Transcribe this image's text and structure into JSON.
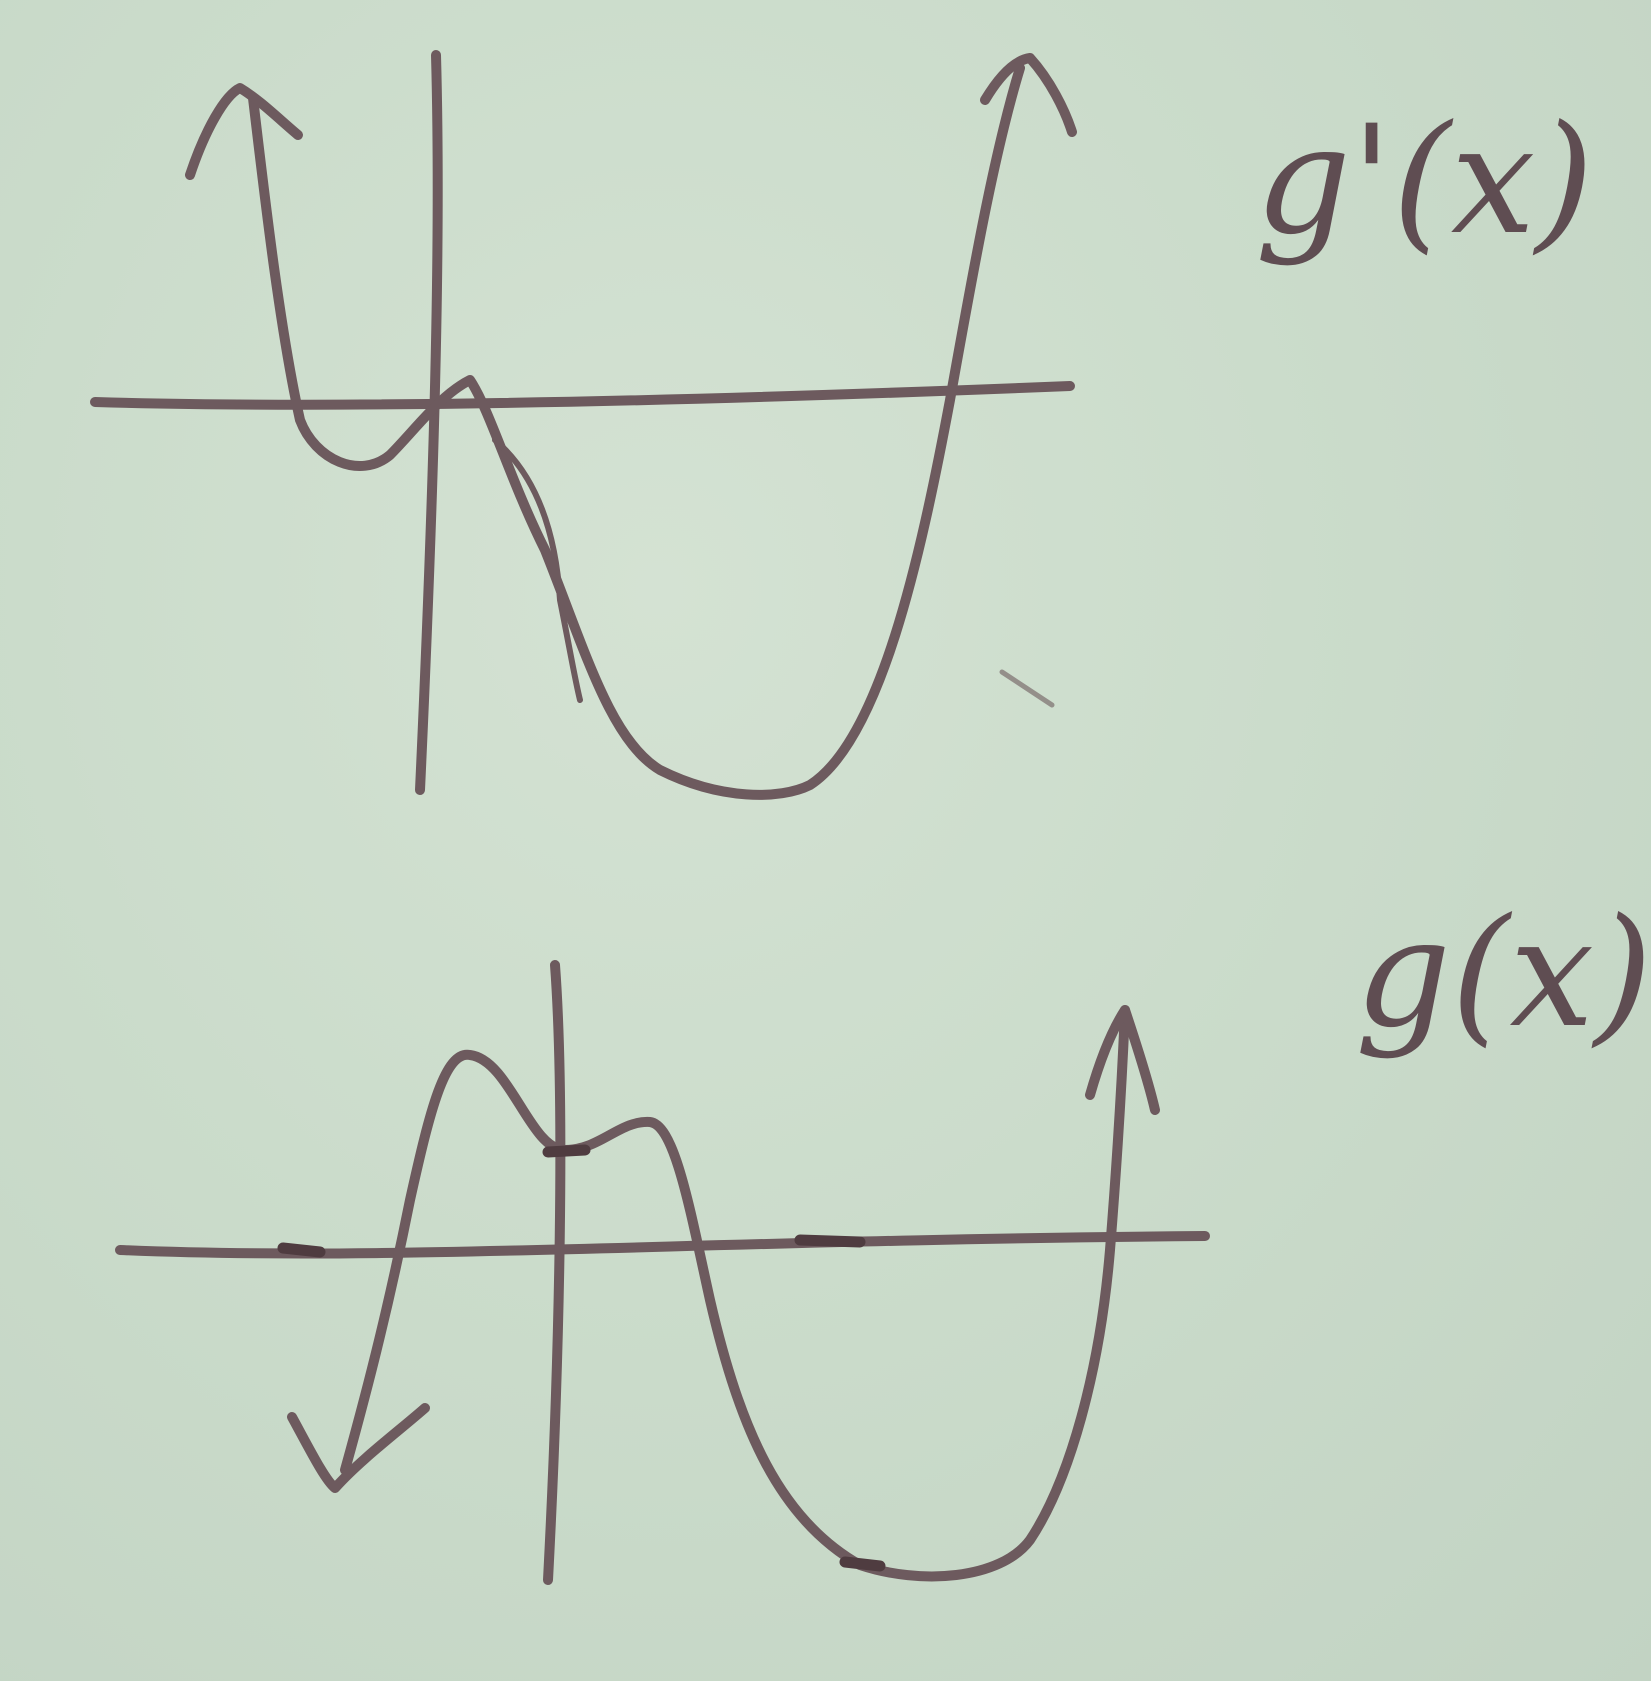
{
  "labels": {
    "derivative": "g'(x)",
    "function": "g(x)"
  },
  "colors": {
    "paper": "#cbdccb",
    "ink": "#6d5a5e"
  }
}
